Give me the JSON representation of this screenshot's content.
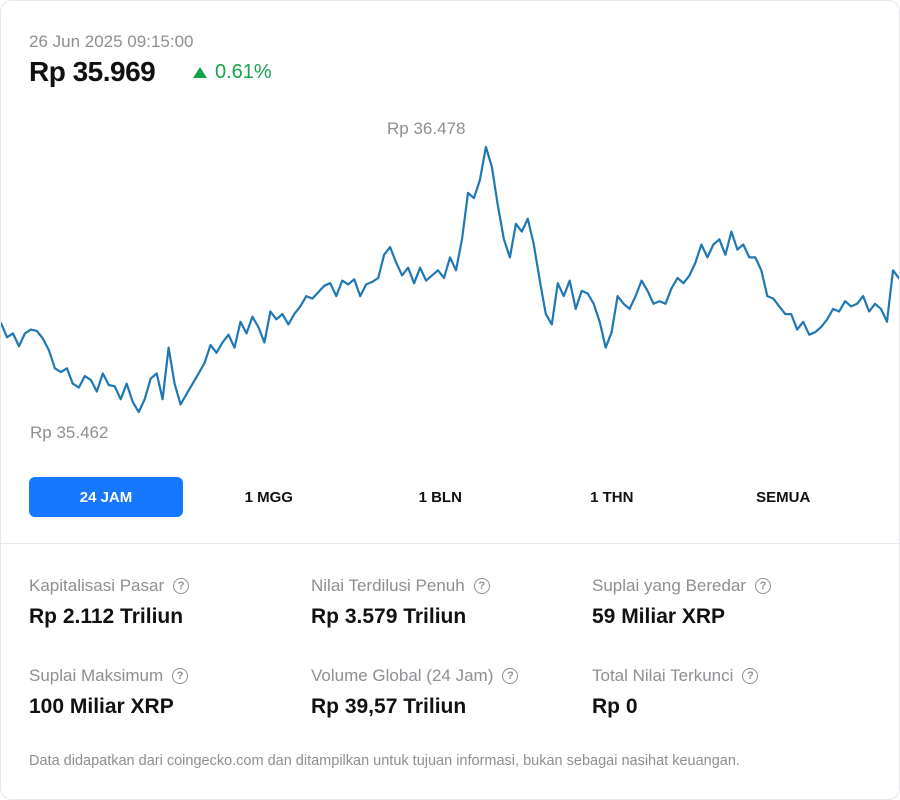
{
  "header": {
    "timestamp": "26 Jun 2025 09:15:00",
    "price": "Rp 35.969",
    "change": "0.61%",
    "change_direction": "up",
    "up_color": "#16a34a"
  },
  "chart_data": {
    "type": "line",
    "high_label": "Rp 36.478",
    "low_label": "Rp 35.462",
    "high": 36478,
    "low": 35462,
    "line_color": "#1f77b4",
    "values": [
      35795,
      35740,
      35755,
      35705,
      35755,
      35770,
      35765,
      35735,
      35690,
      35620,
      35605,
      35620,
      35560,
      35545,
      35590,
      35575,
      35530,
      35600,
      35555,
      35550,
      35500,
      35560,
      35490,
      35450,
      35500,
      35580,
      35600,
      35500,
      35700,
      35560,
      35480,
      35520,
      35560,
      35600,
      35640,
      35710,
      35680,
      35720,
      35750,
      35700,
      35800,
      35755,
      35820,
      35780,
      35720,
      35840,
      35810,
      35830,
      35790,
      35830,
      35860,
      35900,
      35890,
      35915,
      35940,
      35950,
      35900,
      35960,
      35945,
      35965,
      35900,
      35945,
      35955,
      35970,
      36060,
      36090,
      36030,
      35980,
      36010,
      35950,
      36010,
      35960,
      35980,
      36000,
      35970,
      36050,
      36000,
      36120,
      36300,
      36280,
      36350,
      36478,
      36400,
      36250,
      36120,
      36050,
      36180,
      36150,
      36200,
      36100,
      35960,
      35830,
      35790,
      35950,
      35900,
      35960,
      35850,
      35920,
      35910,
      35870,
      35800,
      35700,
      35760,
      35900,
      35870,
      35850,
      35900,
      35960,
      35920,
      35870,
      35880,
      35870,
      35930,
      35970,
      35950,
      35980,
      36030,
      36100,
      36050,
      36100,
      36120,
      36060,
      36150,
      36080,
      36100,
      36050,
      36050,
      36000,
      35900,
      35890,
      35860,
      35830,
      35830,
      35770,
      35800,
      35750,
      35760,
      35780,
      35810,
      35850,
      35840,
      35880,
      35860,
      35870,
      35900,
      35840,
      35870,
      35850,
      35800,
      36000,
      35969
    ]
  },
  "ranges": [
    {
      "label": "24 JAM",
      "active": true
    },
    {
      "label": "1 MGG",
      "active": false
    },
    {
      "label": "1 BLN",
      "active": false
    },
    {
      "label": "1 THN",
      "active": false
    },
    {
      "label": "SEMUA",
      "active": false
    }
  ],
  "stats": [
    {
      "label": "Kapitalisasi Pasar",
      "value": "Rp 2.112 Triliun"
    },
    {
      "label": "Nilai Terdilusi Penuh",
      "value": "Rp 3.579 Triliun"
    },
    {
      "label": "Suplai yang Beredar",
      "value": "59 Miliar XRP"
    },
    {
      "label": "Suplai Maksimum",
      "value": "100 Miliar XRP"
    },
    {
      "label": "Volume Global (24 Jam)",
      "value": "Rp 39,57 Triliun"
    },
    {
      "label": "Total Nilai Terkunci",
      "value": "Rp 0"
    }
  ],
  "help_glyph": "?",
  "footer": "Data didapatkan dari coingecko.com dan ditampilkan untuk tujuan informasi, bukan sebagai nasihat keuangan.",
  "accent_color": "#1677ff"
}
